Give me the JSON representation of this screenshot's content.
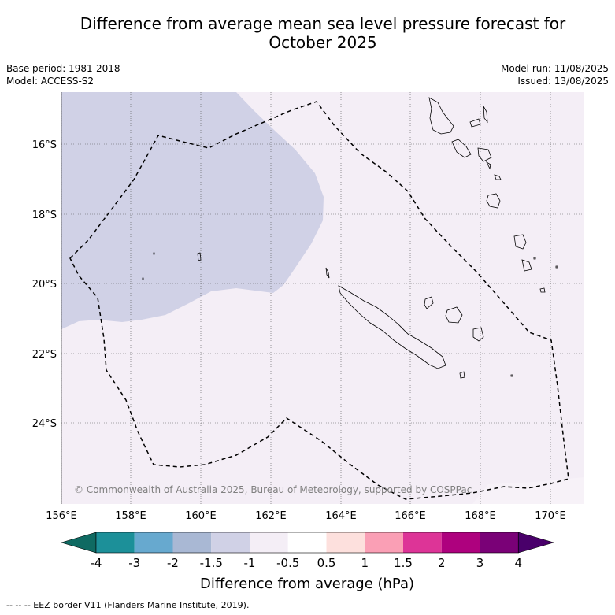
{
  "header": {
    "title_line1": "Difference from average mean sea level pressure forecast for",
    "title_line2": "October 2025",
    "base_period": "Base period: 1981-2018",
    "model": "Model: ACCESS-S2",
    "model_run": "Model run: 11/08/2025",
    "issued": "Issued: 13/08/2025"
  },
  "map": {
    "lon_labels": [
      "156°E",
      "158°E",
      "160°E",
      "162°E",
      "164°E",
      "166°E",
      "168°E",
      "170°E"
    ],
    "lat_labels": [
      "16°S",
      "18°S",
      "20°S",
      "22°S",
      "24°S"
    ],
    "copyright": "© Commonwealth of Australia 2025, Bureau of Meteorology, supported by COSPPac",
    "colors": {
      "ocean_slight_negative": "#d0d1e6",
      "ocean_near_average": "#f4eef6",
      "coast": "#000000",
      "grid": "#555555"
    }
  },
  "colorbar": {
    "tick_labels": [
      "-4",
      "-3",
      "-2",
      "-1.5",
      "-1",
      "-0.5",
      "0.5",
      "1",
      "1.5",
      "2",
      "3",
      "4"
    ],
    "colors": [
      "#0f6a62",
      "#1c9099",
      "#67a9cf",
      "#a9b8d4",
      "#d0d1e6",
      "#f4eef6",
      "#ffffff",
      "#fde0dd",
      "#fa9fb5",
      "#dd3497",
      "#ae017e",
      "#7a0177",
      "#49006a"
    ],
    "label": "Difference from average (hPa)"
  },
  "footnote": "-- -- -- EEZ border V11 (Flanders Marine Institute, 2019)."
}
